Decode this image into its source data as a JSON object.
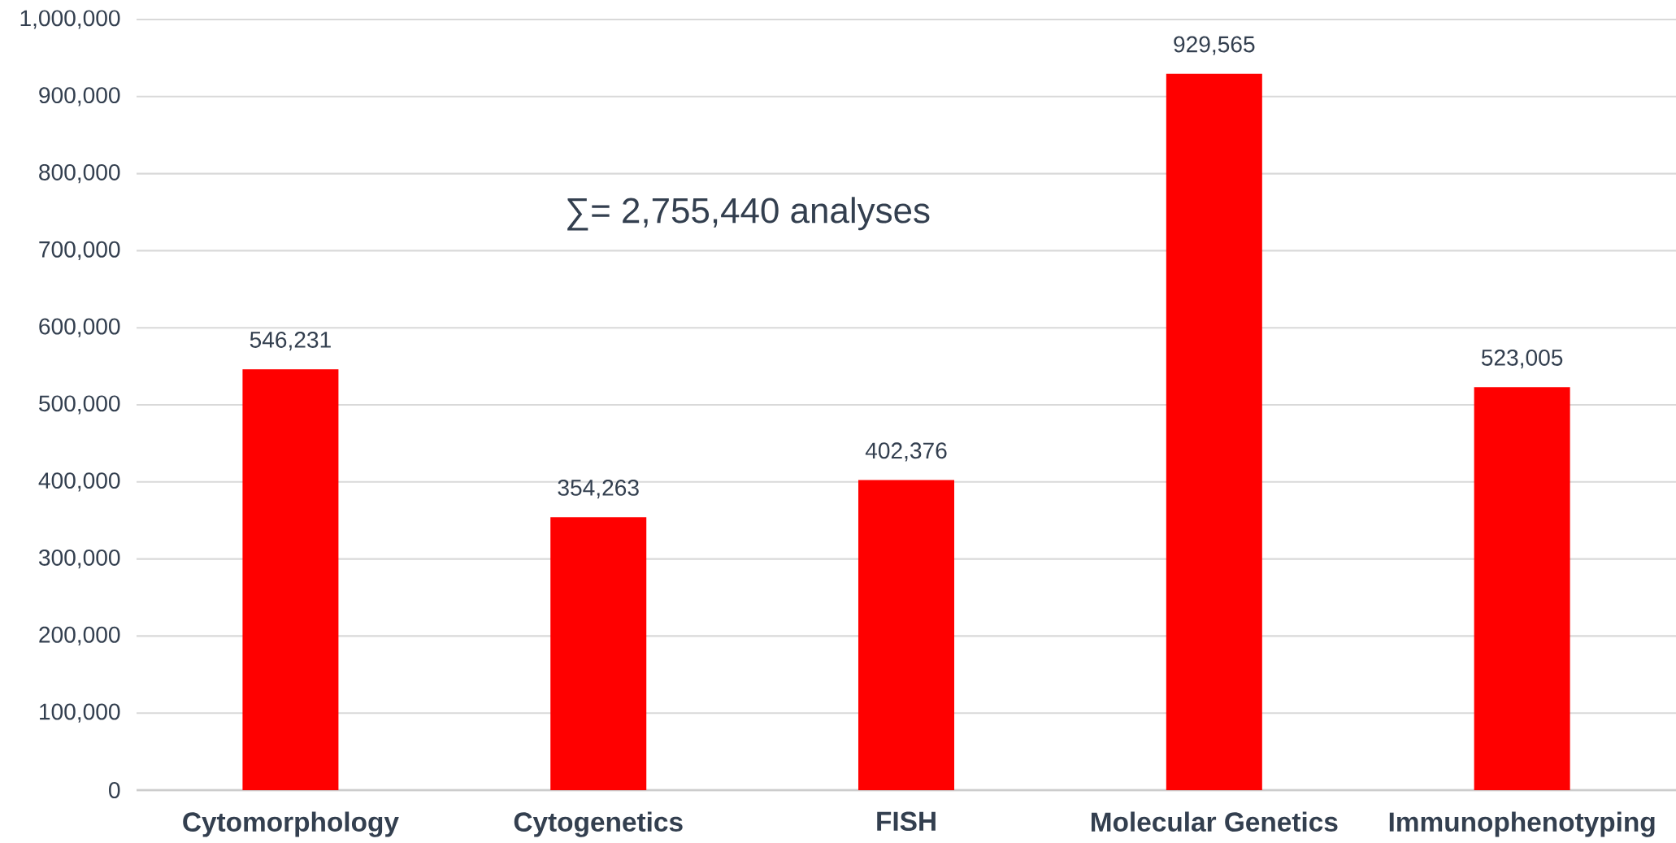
{
  "chart_data": {
    "type": "bar",
    "categories": [
      "Cytomorphology",
      "Cytogenetics",
      "FISH",
      "Molecular Genetics",
      "Immunophenotyping"
    ],
    "values": [
      546231,
      354263,
      402376,
      929565,
      523005
    ],
    "value_labels": [
      "546,231",
      "354,263",
      "402,376",
      "929,565",
      "523,005"
    ],
    "color": "#ff0000",
    "ylim": [
      0,
      1000000
    ],
    "yticks": [
      0,
      {
        "value": 100000,
        "label": "100,000"
      },
      {
        "value": 200000,
        "label": "200,000"
      },
      {
        "value": 300000,
        "label": "300,000"
      },
      {
        "value": 400000,
        "label": "400,000"
      },
      {
        "value": 500000,
        "label": "500,000"
      },
      {
        "value": 600000,
        "label": "600,000"
      },
      {
        "value": 700000,
        "label": "700,000"
      },
      {
        "value": 800000,
        "label": "800,000"
      },
      {
        "value": 900000,
        "label": "900,000"
      },
      {
        "value": 1000000,
        "label": "1,000,000"
      }
    ],
    "grid": "y",
    "annotations": [
      "∑= 2,755,440 analyses"
    ]
  }
}
